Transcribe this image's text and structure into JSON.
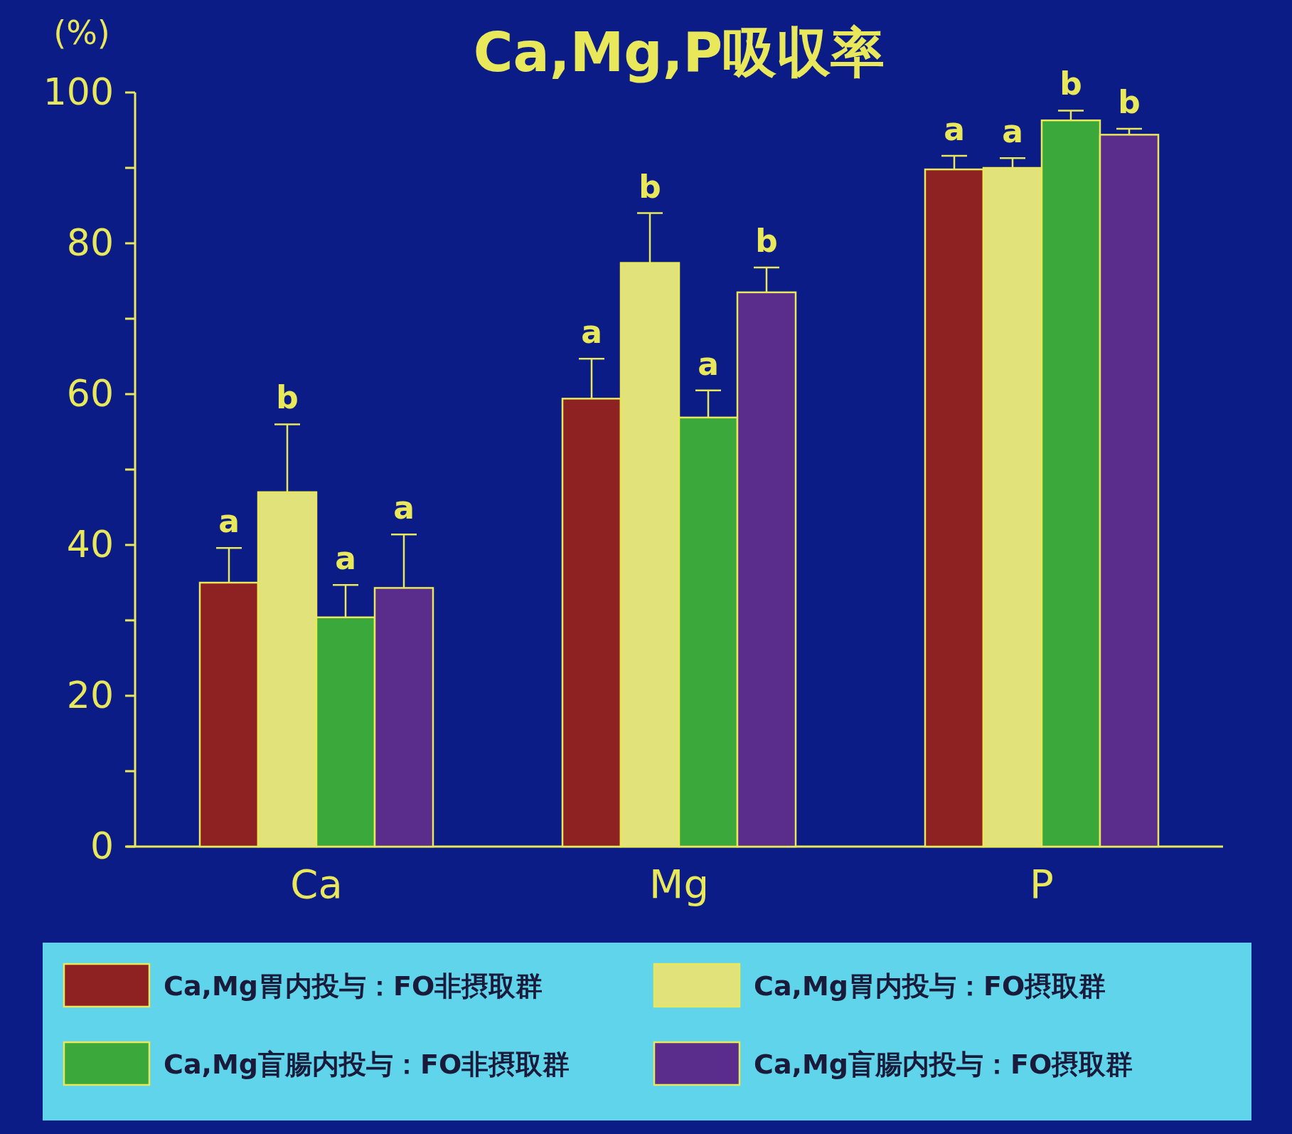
{
  "chart_data": {
    "type": "bar",
    "title": "Ca,Mg,P吸収率",
    "ylabel": "(%)",
    "categories": [
      "Ca",
      "Mg",
      "P"
    ],
    "series": [
      {
        "name": "Ca,Mg胃内投与：FO非摂取群",
        "color": "#8e2222",
        "values": [
          35,
          59.4,
          89.8
        ],
        "errors": [
          [
            35,
            39.6
          ],
          [
            59.4,
            64.7
          ],
          [
            89.8,
            91.6
          ]
        ],
        "value_labels": [
          "a",
          "a",
          "a"
        ]
      },
      {
        "name": "Ca,Mg胃内投与：FO摂取群",
        "color": "#e2e27a",
        "values": [
          47,
          77.4,
          90
        ],
        "errors": [
          [
            47,
            56
          ],
          [
            77.4,
            84
          ],
          [
            90,
            91.3
          ]
        ],
        "value_labels": [
          "b",
          "b",
          "a"
        ]
      },
      {
        "name": "Ca,Mg盲腸内投与：FO非摂取群",
        "color": "#3aa83a",
        "values": [
          30.4,
          56.9,
          96.3
        ],
        "errors": [
          [
            30.4,
            34.7
          ],
          [
            56.9,
            60.5
          ],
          [
            96.3,
            97.6
          ]
        ],
        "value_labels": [
          "a",
          "a",
          "b"
        ]
      },
      {
        "name": "Ca,Mg盲腸内投与：FO摂取群",
        "color": "#5a2c8c",
        "values": [
          34.3,
          73.5,
          94.4
        ],
        "errors": [
          [
            34.3,
            41.4
          ],
          [
            73.5,
            76.8
          ],
          [
            94.4,
            95.2
          ]
        ],
        "value_labels": [
          "a",
          "b",
          "b"
        ]
      }
    ],
    "ylim": [
      0,
      100
    ],
    "yticks": [
      0,
      {
        "value": 10,
        "label": null
      },
      20,
      {
        "value": 30,
        "label": null
      },
      40,
      {
        "value": 50,
        "label": null
      },
      60,
      {
        "value": 70,
        "label": null
      },
      80,
      {
        "value": 90,
        "label": null
      },
      100
    ],
    "legend": "bottom"
  }
}
